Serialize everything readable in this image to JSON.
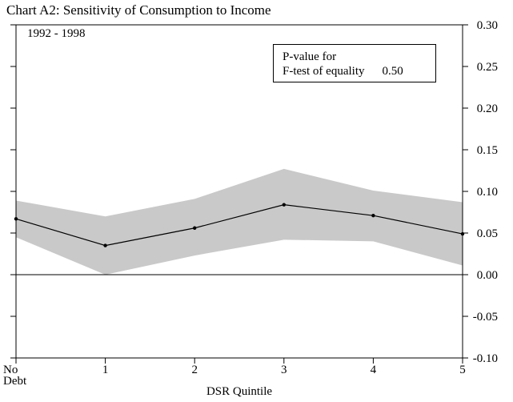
{
  "chart_data": {
    "type": "line",
    "title": "Chart A2: Sensitivity of Consumption to Income",
    "subtitle": "1992 - 1998",
    "xlabel": "DSR Quintile",
    "categories": [
      "No Debt",
      "1",
      "2",
      "3",
      "4",
      "5"
    ],
    "x_tick_lines": [
      [
        "No",
        "Debt"
      ],
      [
        "1"
      ],
      [
        "2"
      ],
      [
        "3"
      ],
      [
        "4"
      ],
      [
        "5"
      ]
    ],
    "ylim": [
      -0.1,
      0.3
    ],
    "y_ticks": [
      0.3,
      0.25,
      0.2,
      0.15,
      0.1,
      0.05,
      0.0,
      -0.05,
      -0.1
    ],
    "y_tick_labels": [
      "0.30",
      "0.25",
      "0.20",
      "0.15",
      "0.10",
      "0.05",
      "0.00",
      "-0.05",
      "-0.10"
    ],
    "series": [
      {
        "name": "estimate",
        "values": [
          0.067,
          0.035,
          0.056,
          0.084,
          0.071,
          0.049
        ]
      },
      {
        "name": "band_upper",
        "values": [
          0.089,
          0.07,
          0.091,
          0.127,
          0.101,
          0.087
        ]
      },
      {
        "name": "band_lower",
        "values": [
          0.045,
          0.0,
          0.023,
          0.042,
          0.04,
          0.011
        ]
      }
    ],
    "zero_line": 0.0,
    "band_color": "#c9c9c9",
    "line_color": "#000000",
    "legend": {
      "line1": "P-value for",
      "line2": "F-test of equality",
      "value": "0.50"
    },
    "legend_position": "top-right",
    "grid": false
  }
}
